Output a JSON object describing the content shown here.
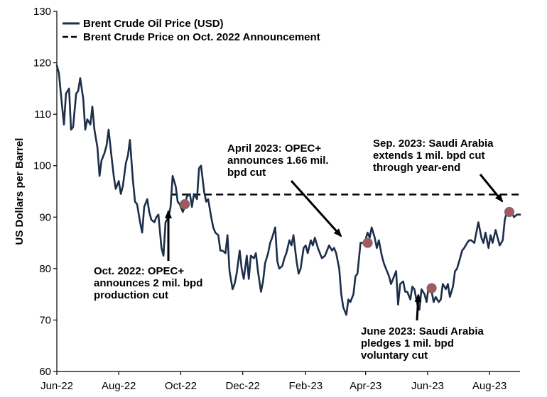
{
  "colors": {
    "line": "#1c2e4a",
    "marker_fill": "#a8575e",
    "marker_stroke": "#707070",
    "axis": "#000000"
  },
  "chart_data": {
    "type": "line",
    "title": "",
    "xlabel": "",
    "ylabel": "US Dollars per Barrel",
    "ylim": [
      60,
      130
    ],
    "yticks": [
      60,
      70,
      80,
      90,
      100,
      110,
      120,
      130
    ],
    "xlim": [
      "2022-06-01",
      "2023-08-31"
    ],
    "xticks": [
      {
        "date": "2022-06-01",
        "label": "Jun-22"
      },
      {
        "date": "2022-08-01",
        "label": "Aug-22"
      },
      {
        "date": "2022-10-01",
        "label": "Oct-22"
      },
      {
        "date": "2022-12-01",
        "label": "Dec-22"
      },
      {
        "date": "2023-02-01",
        "label": "Feb-23"
      },
      {
        "date": "2023-04-01",
        "label": "Apr-23"
      },
      {
        "date": "2023-06-01",
        "label": "Jun-23"
      },
      {
        "date": "2023-08-01",
        "label": "Aug-23"
      }
    ],
    "legend": {
      "position": "top-left",
      "entries": [
        {
          "label": "Brent Crude Oil Price (USD)",
          "style": "solid"
        },
        {
          "label": "Brent Crude Price on Oct. 2022 Announcement",
          "style": "dashed"
        }
      ]
    },
    "series": [
      {
        "name": "Brent Crude Oil Price (USD)",
        "style": "solid",
        "points": [
          [
            "2022-06-01",
            119.5
          ],
          [
            "2022-06-03",
            118.0
          ],
          [
            "2022-06-06",
            112.0
          ],
          [
            "2022-06-08",
            108.0
          ],
          [
            "2022-06-10",
            114.0
          ],
          [
            "2022-06-13",
            115.0
          ],
          [
            "2022-06-15",
            107.0
          ],
          [
            "2022-06-17",
            107.5
          ],
          [
            "2022-06-20",
            114.0
          ],
          [
            "2022-06-22",
            114.5
          ],
          [
            "2022-06-24",
            117.0
          ],
          [
            "2022-06-27",
            113.0
          ],
          [
            "2022-06-29",
            107.0
          ],
          [
            "2022-07-01",
            109.0
          ],
          [
            "2022-07-04",
            108.0
          ],
          [
            "2022-07-06",
            111.5
          ],
          [
            "2022-07-08",
            107.0
          ],
          [
            "2022-07-11",
            103.5
          ],
          [
            "2022-07-13",
            98.0
          ],
          [
            "2022-07-15",
            101.0
          ],
          [
            "2022-07-18",
            102.5
          ],
          [
            "2022-07-20",
            104.0
          ],
          [
            "2022-07-22",
            107.0
          ],
          [
            "2022-07-25",
            101.5
          ],
          [
            "2022-07-27",
            98.0
          ],
          [
            "2022-07-29",
            95.5
          ],
          [
            "2022-08-01",
            97.0
          ],
          [
            "2022-08-03",
            94.5
          ],
          [
            "2022-08-05",
            96.0
          ],
          [
            "2022-08-08",
            100.5
          ],
          [
            "2022-08-10",
            102.0
          ],
          [
            "2022-08-12",
            105.0
          ],
          [
            "2022-08-15",
            97.0
          ],
          [
            "2022-08-17",
            93.0
          ],
          [
            "2022-08-19",
            92.5
          ],
          [
            "2022-08-22",
            89.0
          ],
          [
            "2022-08-24",
            87.0
          ],
          [
            "2022-08-26",
            92.0
          ],
          [
            "2022-08-29",
            93.5
          ],
          [
            "2022-08-31",
            91.0
          ],
          [
            "2022-09-02",
            89.5
          ],
          [
            "2022-09-05",
            89.0
          ],
          [
            "2022-09-07",
            90.0
          ],
          [
            "2022-09-09",
            90.5
          ],
          [
            "2022-09-12",
            84.0
          ],
          [
            "2022-09-14",
            82.5
          ],
          [
            "2022-09-16",
            89.0
          ],
          [
            "2022-09-19",
            90.0
          ],
          [
            "2022-09-21",
            92.0
          ],
          [
            "2022-09-23",
            98.0
          ],
          [
            "2022-09-26",
            96.0
          ],
          [
            "2022-09-28",
            93.0
          ],
          [
            "2022-09-30",
            92.5
          ],
          [
            "2022-10-03",
            91.0
          ],
          [
            "2022-10-05",
            92.0
          ],
          [
            "2022-10-07",
            94.0
          ],
          [
            "2022-10-10",
            94.5
          ],
          [
            "2022-10-12",
            92.0
          ],
          [
            "2022-10-14",
            94.5
          ],
          [
            "2022-10-17",
            93.5
          ],
          [
            "2022-10-19",
            99.5
          ],
          [
            "2022-10-21",
            100.0
          ],
          [
            "2022-10-24",
            95.0
          ],
          [
            "2022-10-26",
            93.0
          ],
          [
            "2022-10-28",
            93.5
          ],
          [
            "2022-10-31",
            90.0
          ],
          [
            "2022-11-02",
            88.0
          ],
          [
            "2022-11-04",
            87.0
          ],
          [
            "2022-11-07",
            86.5
          ],
          [
            "2022-11-09",
            83.5
          ],
          [
            "2022-11-11",
            83.5
          ],
          [
            "2022-11-14",
            83.0
          ],
          [
            "2022-11-16",
            86.5
          ],
          [
            "2022-11-18",
            79.5
          ],
          [
            "2022-11-21",
            76.0
          ],
          [
            "2022-11-23",
            77.0
          ],
          [
            "2022-11-25",
            79.0
          ],
          [
            "2022-11-28",
            83.5
          ],
          [
            "2022-11-30",
            80.0
          ],
          [
            "2022-12-02",
            78.0
          ],
          [
            "2022-12-05",
            82.5
          ],
          [
            "2022-12-07",
            78.0
          ],
          [
            "2022-12-09",
            82.5
          ],
          [
            "2022-12-12",
            82.0
          ],
          [
            "2022-12-14",
            83.0
          ],
          [
            "2022-12-16",
            79.5
          ],
          [
            "2022-12-19",
            75.5
          ],
          [
            "2022-12-21",
            77.5
          ],
          [
            "2022-12-23",
            81.0
          ],
          [
            "2022-12-26",
            83.0
          ],
          [
            "2022-12-28",
            85.0
          ],
          [
            "2022-12-30",
            86.0
          ],
          [
            "2023-01-02",
            88.0
          ],
          [
            "2023-01-04",
            81.5
          ],
          [
            "2023-01-06",
            80.0
          ],
          [
            "2023-01-09",
            80.5
          ],
          [
            "2023-01-11",
            82.0
          ],
          [
            "2023-01-13",
            83.0
          ],
          [
            "2023-01-16",
            85.5
          ],
          [
            "2023-01-18",
            84.5
          ],
          [
            "2023-01-20",
            86.5
          ],
          [
            "2023-01-23",
            81.5
          ],
          [
            "2023-01-25",
            79.0
          ],
          [
            "2023-01-27",
            80.0
          ],
          [
            "2023-01-30",
            84.0
          ],
          [
            "2023-02-01",
            84.5
          ],
          [
            "2023-02-03",
            83.0
          ],
          [
            "2023-02-06",
            85.5
          ],
          [
            "2023-02-08",
            84.5
          ],
          [
            "2023-02-10",
            86.0
          ],
          [
            "2023-02-13",
            84.0
          ],
          [
            "2023-02-15",
            83.0
          ],
          [
            "2023-02-17",
            82.0
          ],
          [
            "2023-02-20",
            82.5
          ],
          [
            "2023-02-22",
            83.5
          ],
          [
            "2023-02-24",
            84.5
          ],
          [
            "2023-02-27",
            83.5
          ],
          [
            "2023-03-01",
            84.0
          ],
          [
            "2023-03-03",
            83.0
          ],
          [
            "2023-03-06",
            80.0
          ],
          [
            "2023-03-08",
            75.0
          ],
          [
            "2023-03-10",
            72.5
          ],
          [
            "2023-03-13",
            71.0
          ],
          [
            "2023-03-15",
            74.0
          ],
          [
            "2023-03-17",
            73.5
          ],
          [
            "2023-03-20",
            75.0
          ],
          [
            "2023-03-22",
            78.5
          ],
          [
            "2023-03-24",
            79.0
          ],
          [
            "2023-03-27",
            85.0
          ],
          [
            "2023-03-29",
            85.0
          ],
          [
            "2023-03-31",
            85.0
          ],
          [
            "2023-04-03",
            87.0
          ],
          [
            "2023-04-05",
            86.0
          ],
          [
            "2023-04-07",
            88.0
          ],
          [
            "2023-04-10",
            86.0
          ],
          [
            "2023-04-12",
            84.0
          ],
          [
            "2023-04-14",
            85.5
          ],
          [
            "2023-04-17",
            82.5
          ],
          [
            "2023-04-19",
            81.0
          ],
          [
            "2023-04-21",
            80.0
          ],
          [
            "2023-04-24",
            78.5
          ],
          [
            "2023-04-26",
            77.0
          ],
          [
            "2023-04-28",
            78.0
          ],
          [
            "2023-05-01",
            79.5
          ],
          [
            "2023-05-03",
            73.0
          ],
          [
            "2023-05-05",
            77.0
          ],
          [
            "2023-05-08",
            77.5
          ],
          [
            "2023-05-10",
            75.5
          ],
          [
            "2023-05-12",
            75.5
          ],
          [
            "2023-05-15",
            74.0
          ],
          [
            "2023-05-17",
            76.5
          ],
          [
            "2023-05-19",
            76.0
          ],
          [
            "2023-05-22",
            73.0
          ],
          [
            "2023-05-24",
            72.0
          ],
          [
            "2023-05-26",
            76.0
          ],
          [
            "2023-05-29",
            75.0
          ],
          [
            "2023-05-31",
            73.5
          ],
          [
            "2023-06-02",
            76.5
          ],
          [
            "2023-06-05",
            75.5
          ],
          [
            "2023-06-07",
            73.5
          ],
          [
            "2023-06-09",
            74.5
          ],
          [
            "2023-06-12",
            73.5
          ],
          [
            "2023-06-14",
            74.0
          ],
          [
            "2023-06-16",
            77.0
          ],
          [
            "2023-06-19",
            76.0
          ],
          [
            "2023-06-21",
            77.0
          ],
          [
            "2023-06-23",
            74.5
          ],
          [
            "2023-06-26",
            76.5
          ],
          [
            "2023-06-28",
            79.5
          ],
          [
            "2023-06-30",
            80.0
          ],
          [
            "2023-07-03",
            82.0
          ],
          [
            "2023-07-05",
            83.5
          ],
          [
            "2023-07-07",
            84.0
          ],
          [
            "2023-07-10",
            85.0
          ],
          [
            "2023-07-12",
            85.5
          ],
          [
            "2023-07-14",
            85.5
          ],
          [
            "2023-07-17",
            85.0
          ],
          [
            "2023-07-19",
            87.0
          ],
          [
            "2023-07-21",
            89.0
          ],
          [
            "2023-07-24",
            86.0
          ],
          [
            "2023-07-26",
            85.0
          ],
          [
            "2023-07-28",
            87.0
          ],
          [
            "2023-07-31",
            84.0
          ],
          [
            "2023-08-02",
            86.5
          ],
          [
            "2023-08-04",
            85.0
          ],
          [
            "2023-08-07",
            87.5
          ],
          [
            "2023-08-09",
            86.0
          ],
          [
            "2023-08-11",
            84.5
          ],
          [
            "2023-08-14",
            85.5
          ],
          [
            "2023-08-16",
            89.5
          ],
          [
            "2023-08-18",
            91.0
          ],
          [
            "2023-08-21",
            90.5
          ],
          [
            "2023-08-23",
            91.0
          ],
          [
            "2023-08-25",
            90.0
          ],
          [
            "2023-08-28",
            90.5
          ],
          [
            "2023-08-31",
            90.5
          ]
        ]
      },
      {
        "name": "Brent Crude Price on Oct. 2022 Announcement",
        "style": "dashed",
        "x_start": "2022-09-21",
        "x_end": "2023-08-31",
        "value": 94.4
      }
    ],
    "markers": [
      {
        "date": "2022-10-05",
        "value": 92.5
      },
      {
        "date": "2023-04-03",
        "value": 85.0
      },
      {
        "date": "2023-06-05",
        "value": 76.2
      },
      {
        "date": "2023-09-05",
        "value": 91.0
      }
    ],
    "annotations": [
      {
        "lines": [
          "Oct. 2022: OPEC+",
          "announces 2 mil. bpd",
          "production cut"
        ],
        "points_to": "2022-10-05"
      },
      {
        "lines": [
          "April 2023: OPEC+",
          "announces 1.66 mil.",
          "bpd cut"
        ],
        "points_to": "2023-04-03"
      },
      {
        "lines": [
          "June 2023: Saudi Arabia",
          "pledges 1 mil. bpd",
          "voluntary cut"
        ],
        "points_to": "2023-06-05"
      },
      {
        "lines": [
          "Sep. 2023: Saudi Arabia",
          "extends 1 mil. bpd cut",
          "through year-end"
        ],
        "points_to": "2023-09-05"
      }
    ]
  }
}
